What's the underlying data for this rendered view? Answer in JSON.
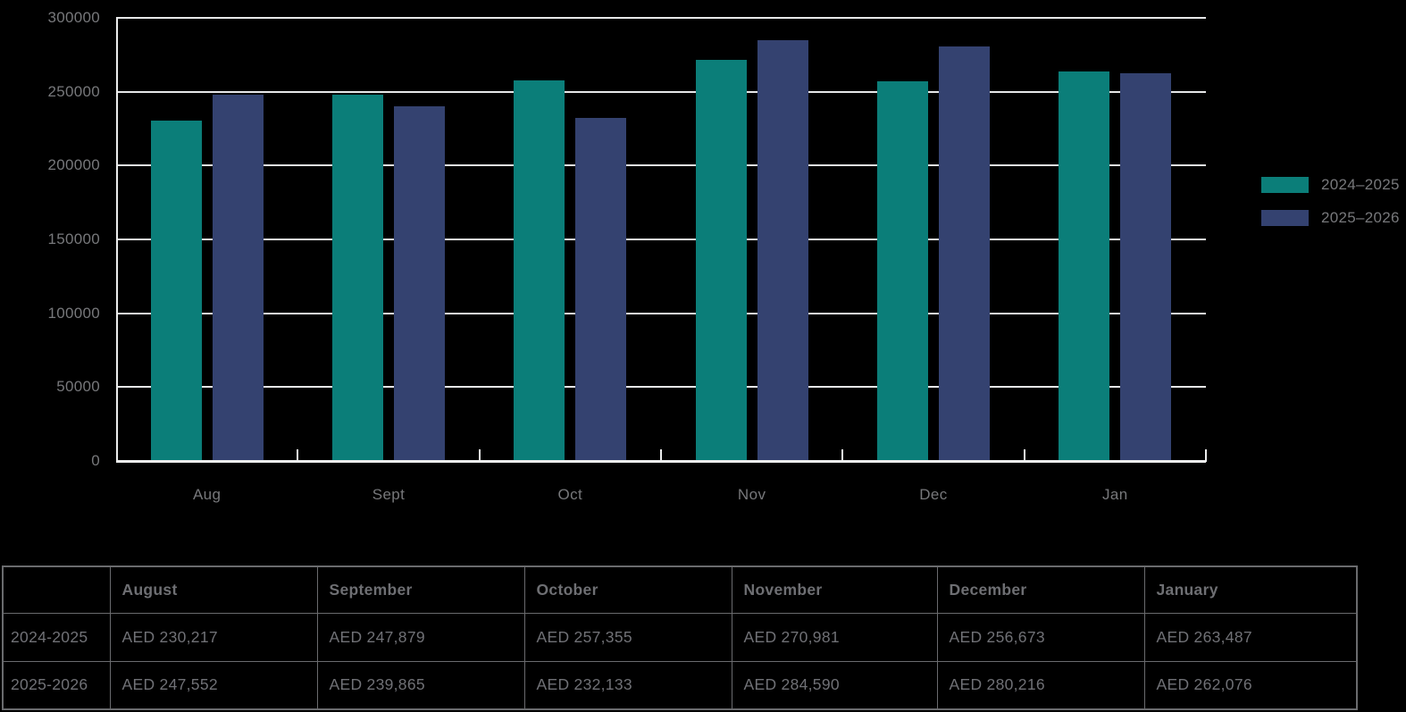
{
  "background": "#000000",
  "chart_data": {
    "type": "bar",
    "categories": [
      "Aug",
      "Sept",
      "Oct",
      "Nov",
      "Dec",
      "Jan"
    ],
    "series": [
      {
        "name": "2024–2025",
        "color": "#0b7e79",
        "values": [
          230217,
          247879,
          257355,
          270981,
          256673,
          263487
        ]
      },
      {
        "name": "2025–2026",
        "color": "#344270",
        "values": [
          247552,
          239865,
          232133,
          284590,
          280216,
          262076
        ]
      }
    ],
    "title": "",
    "xlabel": "",
    "ylabel": "",
    "ylim": [
      0,
      300000
    ],
    "ytick_step": 50000,
    "yticks": [
      "300000",
      "250000",
      "200000",
      "150000",
      "100000",
      "50000",
      "0"
    ],
    "grid": true,
    "legend_position": "right",
    "currency": "AED"
  },
  "table": {
    "columns": [
      "",
      "August",
      "September",
      "October",
      "November",
      "December",
      "January"
    ],
    "rows": [
      {
        "header": "2024-2025",
        "cells": [
          "AED 230,217",
          "AED 247,879",
          "AED 257,355",
          "AED 270,981",
          "AED 256,673",
          "AED 263,487"
        ]
      },
      {
        "header": "2025-2026",
        "cells": [
          "AED 247,552",
          "AED 239,865",
          "AED 232,133",
          "AED 284,590",
          "AED 280,216",
          "AED 262,076"
        ]
      }
    ]
  },
  "colors": {
    "teal": "#0b7e79",
    "navy": "#344270",
    "gridline": "#e6e7e8",
    "axis_text": "#77787b",
    "table_text": "#707176",
    "table_border": "#6a6b6e"
  }
}
